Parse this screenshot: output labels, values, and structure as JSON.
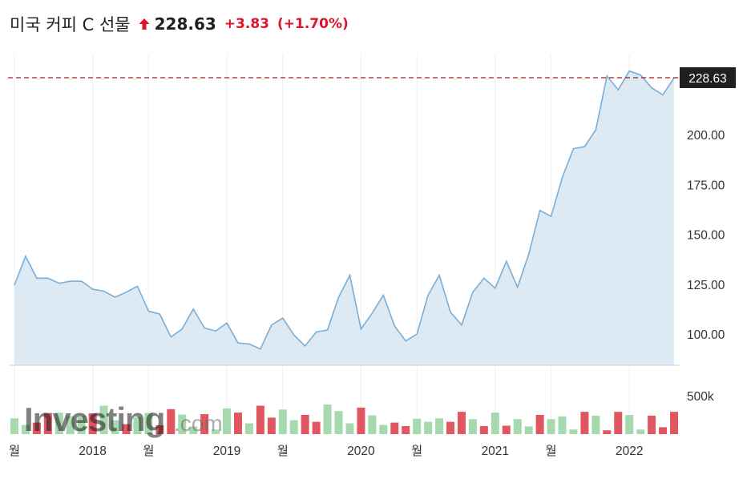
{
  "header": {
    "title": "미국 커피 C 선물",
    "last_price": "228.63",
    "change": "+3.83",
    "change_pct": "(+1.70%)",
    "direction_icon": "up-arrow-icon"
  },
  "watermark": {
    "brand": "Investing",
    "suffix": ".com"
  },
  "colors": {
    "line": "#7aaed6",
    "area": "#dde9f3",
    "vol_up": "#a6d9ae",
    "vol_down": "#e05762",
    "up": "#e0132b",
    "last_price_bg": "#1f1f1f",
    "ref_line": "#9e1b1b"
  },
  "chart_data": {
    "type": "area",
    "x_unit": "month",
    "x_start": "2017-05",
    "values": [
      124.5,
      139,
      128,
      128,
      125.5,
      126.5,
      126.5,
      122.5,
      121.5,
      118.5,
      121,
      124,
      111.5,
      110,
      98.5,
      102.5,
      112.5,
      103,
      101.5,
      105.5,
      95.5,
      95,
      92.5,
      104.5,
      108,
      99.5,
      94,
      101,
      102,
      118.5,
      129.5,
      102.5,
      110.5,
      119.5,
      104,
      96.5,
      100,
      119.5,
      129.5,
      111,
      104.5,
      121,
      128,
      123,
      136.5,
      123.5,
      140,
      162,
      159,
      178.5,
      193,
      194,
      202.5,
      229.5,
      222.5,
      232,
      230,
      223.5,
      220,
      228.63
    ],
    "volume_direction": [
      "up",
      "up",
      "down",
      "down",
      "up",
      "up",
      "up",
      "down",
      "up",
      "up",
      "down",
      "up",
      "up",
      "down",
      "down",
      "up",
      "up",
      "down",
      "up",
      "up",
      "down",
      "up",
      "down",
      "down",
      "up",
      "up",
      "down",
      "down",
      "up",
      "up",
      "up",
      "down",
      "up",
      "up",
      "down",
      "down",
      "up",
      "up",
      "up",
      "down",
      "down",
      "up",
      "down",
      "up",
      "down",
      "up",
      "up",
      "down",
      "up",
      "up",
      "up",
      "down",
      "up",
      "down",
      "down",
      "up",
      "up",
      "down",
      "down",
      "down"
    ],
    "volume_k": [
      205,
      120,
      150,
      275,
      280,
      235,
      240,
      270,
      370,
      180,
      130,
      220,
      275,
      115,
      325,
      255,
      100,
      260,
      60,
      335,
      280,
      140,
      370,
      215,
      320,
      180,
      250,
      160,
      385,
      300,
      140,
      345,
      245,
      120,
      150,
      105,
      200,
      160,
      205,
      160,
      290,
      195,
      105,
      280,
      110,
      195,
      100,
      250,
      195,
      230,
      60,
      290,
      240,
      50,
      290,
      250,
      60,
      240,
      90,
      290
    ],
    "y_ticks": [
      "100.00",
      "125.00",
      "150.00",
      "175.00",
      "200.00"
    ],
    "y_range": [
      80,
      245
    ],
    "volume_tick": "500k",
    "volume_range": [
      0,
      580
    ],
    "x_labels": [
      {
        "text": "월",
        "month_index": 0
      },
      {
        "text": "2018",
        "month_index": 7
      },
      {
        "text": "월",
        "month_index": 12
      },
      {
        "text": "2019",
        "month_index": 19
      },
      {
        "text": "월",
        "month_index": 24
      },
      {
        "text": "2020",
        "month_index": 31
      },
      {
        "text": "월",
        "month_index": 36
      },
      {
        "text": "2021",
        "month_index": 43
      },
      {
        "text": "월",
        "month_index": 48
      },
      {
        "text": "2022",
        "month_index": 55
      }
    ],
    "last_value_label": "228.63",
    "reference_line": 228.63,
    "grid": "vertical",
    "legend": "none"
  }
}
